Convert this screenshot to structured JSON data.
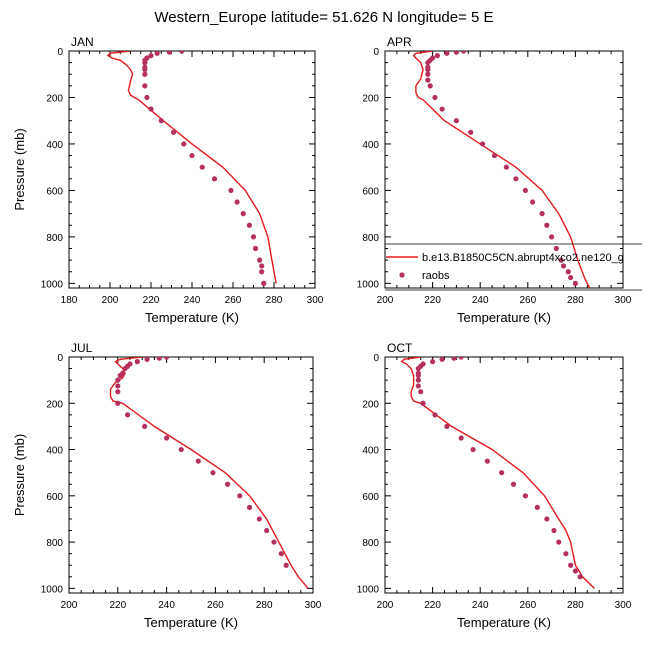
{
  "figure": {
    "title": "Western_Europe  latitude= 51.626 N longitude= 5 E",
    "model_color": "#e31a1c",
    "obs_color": "#b5305f"
  },
  "legend": {
    "model_label": "b.e13.B1850C5CN.abrupt4xco2.ne120_g",
    "obs_label": "raobs"
  },
  "chart_data": [
    {
      "type": "line",
      "panel_label": "JAN",
      "xlabel": "Temperature (K)",
      "ylabel": "Pressure (mb)",
      "xlim": [
        180,
        300
      ],
      "ylim": [
        1020,
        0
      ],
      "y_inverted": true,
      "xticks": [
        180,
        200,
        220,
        240,
        260,
        280,
        300
      ],
      "yticks": [
        0,
        200,
        400,
        600,
        800,
        1000
      ],
      "series": [
        {
          "name": "b.e13.B1850C5CN.abrupt4xco2.ne120_g",
          "style": "line",
          "x": [
            210,
            200,
            199,
            201,
            205,
            208,
            210,
            211,
            210,
            209,
            210,
            212,
            214,
            226,
            240,
            255,
            266,
            273,
            277,
            279,
            281
          ],
          "y": [
            0,
            10,
            20,
            30,
            40,
            60,
            80,
            100,
            130,
            170,
            190,
            200,
            210,
            300,
            400,
            500,
            600,
            700,
            800,
            900,
            1000
          ]
        },
        {
          "name": "raobs",
          "style": "markers",
          "x": [
            235,
            229,
            223,
            220,
            218,
            217,
            217,
            217,
            217,
            217,
            217,
            218,
            220,
            225,
            231,
            236,
            240,
            245,
            251,
            259,
            262,
            265,
            268,
            270,
            271,
            273,
            274,
            274,
            275
          ],
          "y": [
            0,
            5,
            10,
            20,
            30,
            40,
            50,
            70,
            80,
            100,
            150,
            200,
            250,
            300,
            350,
            400,
            450,
            500,
            550,
            600,
            650,
            700,
            750,
            800,
            850,
            900,
            925,
            950,
            1000
          ]
        }
      ]
    },
    {
      "type": "line",
      "panel_label": "APR",
      "xlabel": "Temperature (K)",
      "ylabel": "",
      "xlim": [
        200,
        300
      ],
      "ylim": [
        1020,
        0
      ],
      "y_inverted": true,
      "xticks": [
        200,
        220,
        240,
        260,
        280,
        300
      ],
      "yticks": [
        0,
        200,
        400,
        600,
        800,
        1000
      ],
      "legend_position": "lower-right",
      "series": [
        {
          "name": "b.e13.B1850C5CN.abrupt4xco2.ne120_g",
          "style": "line",
          "x": [
            220,
            213,
            212,
            213,
            215,
            216,
            215,
            213,
            213,
            214,
            216,
            225,
            240,
            255,
            266,
            273,
            278,
            281,
            284,
            286
          ],
          "y": [
            0,
            10,
            20,
            30,
            50,
            80,
            120,
            150,
            180,
            200,
            210,
            300,
            400,
            500,
            600,
            700,
            800,
            900,
            980,
            1020
          ]
        },
        {
          "name": "raobs",
          "style": "markers",
          "x": [
            233,
            230,
            226,
            222,
            220,
            219,
            218,
            218,
            218,
            218,
            218,
            219,
            221,
            224,
            230,
            236,
            241,
            246,
            251,
            255,
            259,
            262,
            266,
            268,
            270,
            272,
            274,
            275,
            277,
            278,
            280
          ],
          "y": [
            0,
            5,
            10,
            20,
            30,
            40,
            50,
            70,
            80,
            100,
            125,
            150,
            200,
            250,
            300,
            350,
            400,
            450,
            500,
            550,
            600,
            650,
            700,
            750,
            800,
            850,
            900,
            925,
            950,
            975,
            1000
          ]
        }
      ]
    },
    {
      "type": "line",
      "panel_label": "JUL",
      "xlabel": "Temperature (K)",
      "ylabel": "Pressure (mb)",
      "xlim": [
        200,
        300
      ],
      "ylim": [
        1020,
        0
      ],
      "y_inverted": true,
      "xticks": [
        200,
        220,
        240,
        260,
        280,
        300
      ],
      "yticks": [
        0,
        200,
        400,
        600,
        800,
        1000
      ],
      "series": [
        {
          "name": "b.e13.B1850C5CN.abrupt4xco2.ne120_g",
          "style": "line",
          "x": [
            230,
            221,
            219,
            220,
            222,
            223,
            222,
            219,
            217,
            217,
            218,
            222,
            235,
            250,
            264,
            274,
            281,
            286,
            291,
            294,
            298
          ],
          "y": [
            0,
            10,
            20,
            30,
            50,
            70,
            90,
            110,
            140,
            170,
            190,
            200,
            300,
            400,
            500,
            600,
            700,
            800,
            900,
            950,
            1000
          ]
        },
        {
          "name": "raobs",
          "style": "markers",
          "x": [
            240,
            237,
            232,
            228,
            225,
            224,
            223,
            222,
            221,
            220,
            220,
            220,
            220,
            224,
            231,
            240,
            246,
            253,
            259,
            265,
            270,
            274,
            278,
            281,
            284,
            287,
            289
          ],
          "y": [
            0,
            5,
            10,
            20,
            30,
            40,
            50,
            70,
            80,
            100,
            125,
            150,
            200,
            250,
            300,
            350,
            400,
            450,
            500,
            550,
            600,
            650,
            700,
            750,
            800,
            850,
            900
          ]
        }
      ]
    },
    {
      "type": "line",
      "panel_label": "OCT",
      "xlabel": "Temperature (K)",
      "ylabel": "",
      "xlim": [
        200,
        300
      ],
      "ylim": [
        1020,
        0
      ],
      "y_inverted": true,
      "xticks": [
        200,
        220,
        240,
        260,
        280,
        300
      ],
      "yticks": [
        0,
        200,
        400,
        600,
        800,
        1000
      ],
      "series": [
        {
          "name": "b.e13.B1850C5CN.abrupt4xco2.ne120_g",
          "style": "line",
          "x": [
            215,
            208,
            207,
            209,
            211,
            212,
            212,
            211,
            211,
            212,
            215,
            228,
            245,
            258,
            267,
            273,
            276,
            278,
            280,
            283,
            288
          ],
          "y": [
            0,
            10,
            20,
            30,
            50,
            80,
            120,
            150,
            170,
            190,
            200,
            300,
            400,
            500,
            600,
            700,
            750,
            800,
            900,
            950,
            1000
          ]
        },
        {
          "name": "raobs",
          "style": "markers",
          "x": [
            232,
            229,
            224,
            220,
            216,
            215,
            214,
            214,
            214,
            214,
            214,
            215,
            216,
            221,
            226,
            232,
            237,
            243,
            249,
            254,
            259,
            264,
            268,
            271,
            273,
            276,
            278,
            280,
            282
          ],
          "y": [
            0,
            5,
            10,
            20,
            30,
            40,
            50,
            70,
            80,
            100,
            125,
            150,
            200,
            250,
            300,
            350,
            400,
            450,
            500,
            550,
            600,
            650,
            700,
            750,
            800,
            850,
            900,
            925,
            950
          ]
        }
      ]
    }
  ]
}
